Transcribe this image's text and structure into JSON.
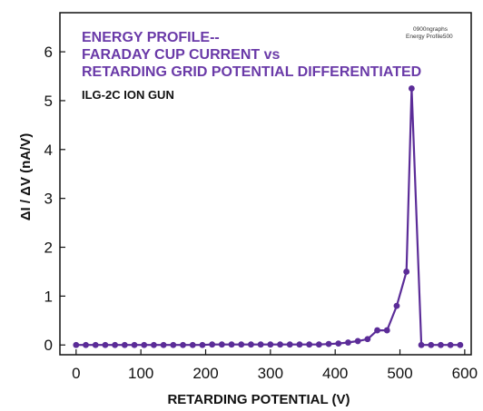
{
  "chart_data": {
    "type": "line",
    "title_lines": [
      "ENERGY PROFILE--",
      "FARADAY CUP CURRENT vs",
      "RETARDING GRID POTENTIAL DIFFERENTIATED"
    ],
    "subtitle": "ILG-2C ION GUN",
    "note_lines": [
      "0900ngraphs",
      "Energy Profile500"
    ],
    "xlabel": "RETARDING POTENTIAL (V)",
    "ylabel": "ΔI / ΔV (nA/V)",
    "xlim": [
      -25,
      610
    ],
    "ylim": [
      -0.2,
      6.8
    ],
    "xticks": [
      0,
      100,
      200,
      300,
      400,
      500,
      600
    ],
    "yticks": [
      0,
      1,
      2,
      3,
      4,
      5,
      6
    ],
    "grid": false,
    "legend": "none",
    "colors": {
      "series": "#5b2c98",
      "title": "#6a3aa8",
      "axis": "#111111"
    },
    "series": [
      {
        "x": [
          0,
          15,
          30,
          45,
          60,
          75,
          90,
          105,
          120,
          135,
          150,
          165,
          180,
          195,
          210,
          225,
          240,
          255,
          270,
          285,
          300,
          315,
          330,
          345,
          360,
          375,
          390,
          405,
          420,
          435,
          450,
          465,
          480,
          495,
          510,
          518,
          533,
          548,
          563,
          578,
          593
        ],
        "y": [
          0,
          0,
          0,
          0,
          0,
          0,
          0,
          0,
          0,
          0,
          0,
          0,
          0,
          0,
          0.01,
          0.01,
          0.01,
          0.01,
          0.01,
          0.01,
          0.01,
          0.01,
          0.01,
          0.01,
          0.01,
          0.01,
          0.02,
          0.03,
          0.05,
          0.08,
          0.12,
          0.3,
          0.3,
          0.8,
          1.5,
          5.25,
          0,
          0,
          0,
          0,
          0
        ]
      }
    ]
  }
}
